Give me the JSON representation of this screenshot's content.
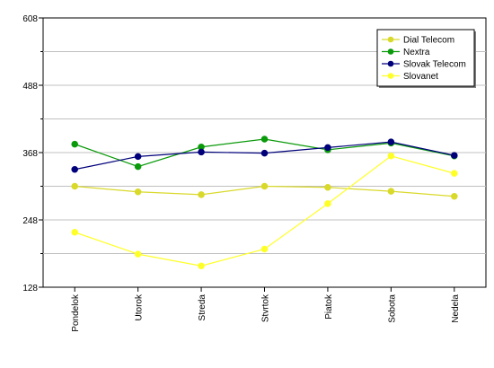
{
  "chart_data": {
    "type": "line",
    "categories": [
      "Pondelok",
      "Utorok",
      "Streda",
      "Stvrtok",
      "Piatok",
      "Sobota",
      "Nedela"
    ],
    "ylim": [
      128,
      608
    ],
    "yticks": [
      128,
      248,
      368,
      488,
      608
    ],
    "grid": true,
    "legend_position": "top-right",
    "series": [
      {
        "name": "Dial Telecom",
        "color": "#d9d92b",
        "values": [
          308,
          298,
          293,
          308,
          306,
          299,
          290
        ]
      },
      {
        "name": "Nextra",
        "color": "#0a9a0a",
        "values": [
          383,
          343,
          378,
          392,
          373,
          385,
          362
        ]
      },
      {
        "name": "Slovak Telecom",
        "color": "#00007a",
        "values": [
          338,
          361,
          369,
          367,
          377,
          387,
          363
        ]
      },
      {
        "name": "Slovanet",
        "color": "#ffff28",
        "values": [
          226,
          187,
          166,
          196,
          277,
          362,
          331
        ]
      }
    ]
  }
}
